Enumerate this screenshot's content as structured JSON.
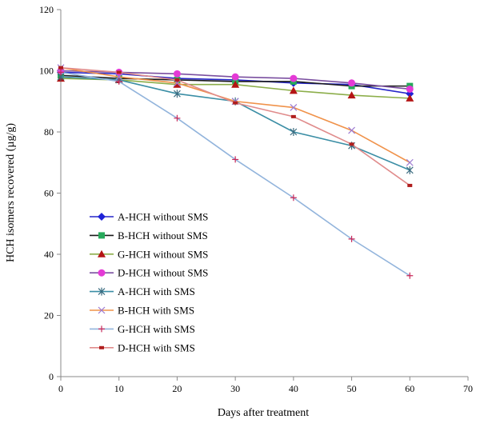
{
  "chart_data": {
    "type": "line",
    "title": "",
    "xlabel": "Days after treatment",
    "ylabel": "HCH isomers recovered (µg/g)",
    "xlim": [
      0,
      70
    ],
    "ylim": [
      0,
      120
    ],
    "xticks": [
      0,
      10,
      20,
      30,
      40,
      50,
      60,
      70
    ],
    "yticks": [
      0,
      20,
      40,
      60,
      80,
      100,
      120
    ],
    "grid": false,
    "legend_position": "left-bottom",
    "x": [
      0,
      10,
      20,
      30,
      40,
      50,
      60
    ],
    "series": [
      {
        "name": "A-HCH without SMS",
        "color": "#2626c8",
        "marker": "diamond",
        "values": [
          99.5,
          99.0,
          97.5,
          97.0,
          96.0,
          95.5,
          92.5
        ]
      },
      {
        "name": "B-HCH without SMS",
        "color": "#1a1a1a",
        "marker": "square",
        "values": [
          98.5,
          97.5,
          97.0,
          96.5,
          96.5,
          95.0,
          95.0
        ]
      },
      {
        "name": "G-HCH without SMS",
        "color": "#8cae4a",
        "marker": "triangle",
        "values": [
          97.5,
          97.0,
          95.5,
          95.5,
          93.5,
          92.0,
          91.0
        ]
      },
      {
        "name": "D-HCH without SMS",
        "color": "#7a4fa0",
        "marker": "circle",
        "values": [
          100.0,
          99.5,
          99.0,
          98.0,
          97.5,
          96.0,
          94.0
        ]
      },
      {
        "name": "A-HCH with SMS",
        "color": "#3b8ea5",
        "marker": "star",
        "values": [
          98.0,
          97.0,
          92.5,
          90.0,
          80.0,
          75.5,
          67.5
        ]
      },
      {
        "name": "B-HCH with SMS",
        "color": "#f0924a",
        "marker": "x",
        "values": [
          101.0,
          98.0,
          96.0,
          90.0,
          88.0,
          80.5,
          70.0
        ]
      },
      {
        "name": "G-HCH with SMS",
        "color": "#92b4dc",
        "marker": "plus",
        "values": [
          99.5,
          96.5,
          84.5,
          71.0,
          58.5,
          45.0,
          33.0
        ]
      },
      {
        "name": "D-HCH with SMS",
        "color": "#e08c8c",
        "marker": "dash",
        "values": [
          101.0,
          99.5,
          97.0,
          89.5,
          85.0,
          76.0,
          62.5
        ]
      }
    ],
    "marker_colors": {
      "diamond": "#1e22d8",
      "square": "#26a95a",
      "triangle": "#b41414",
      "circle": "#e43ad6",
      "star": "#3b6c80",
      "x": "#9c7ad2",
      "plus": "#c8285a",
      "dash": "#b01e1e"
    }
  }
}
